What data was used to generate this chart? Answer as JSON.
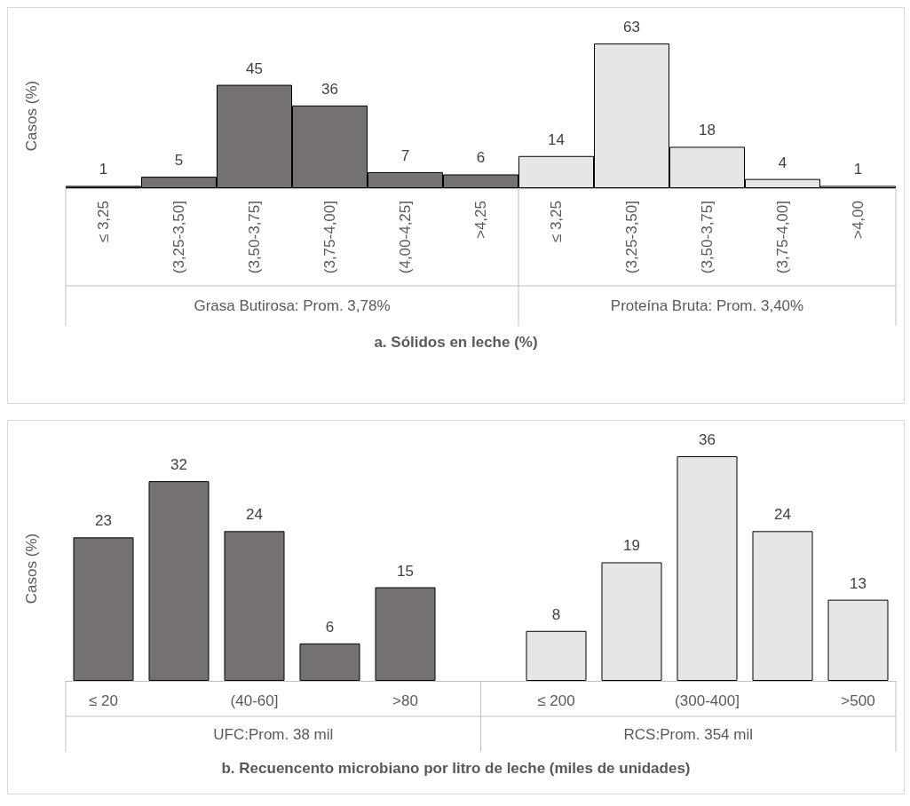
{
  "chart_data": [
    {
      "type": "bar",
      "ylabel": "Casos (%)",
      "xlabel": "a. Sólidos en leche (%)",
      "annotations": [
        "Grasa Butirosa: Prom. 3,78%",
        "Proteína Bruta: Prom. 3,40%"
      ],
      "categories": [
        "≤ 3,25",
        "(3,25-3,50]",
        "(3,50-3,75]",
        "(3,75-4,00]",
        "(4,00-4,25]",
        ">4,25",
        "≤ 3,25",
        "(3,25-3,50]",
        "(3,50-3,75]",
        "(3,75-4,00]",
        ">4,00"
      ],
      "stacked": true,
      "data_labels": true,
      "grid": false,
      "series": [
        {
          "color": "#767171",
          "values": [
            1,
            5,
            45,
            36,
            7,
            6,
            null,
            null,
            null,
            null,
            null
          ]
        },
        {
          "color": "#e7e6e6",
          "values": [
            null,
            null,
            null,
            null,
            null,
            null,
            14,
            63,
            18,
            4,
            1
          ]
        }
      ]
    },
    {
      "type": "bar",
      "ylabel": "Casos (%)",
      "xlabel": "b. Recuencento microbiano por litro de leche (miles de unidades)",
      "annotations": [
        "UFC:Prom. 38 mil",
        "RCS:Prom. 354 mil"
      ],
      "categories": [
        "≤ 20",
        null,
        "(40-60]",
        null,
        ">80",
        null,
        "≤ 200",
        null,
        "(300-400]",
        null,
        ">500"
      ],
      "stacked": true,
      "data_labels": true,
      "grid": false,
      "series": [
        {
          "color": "#767171",
          "values": [
            23,
            32,
            24,
            6,
            15,
            null,
            null,
            null,
            null,
            null,
            null
          ]
        },
        {
          "color": "#e7e6e6",
          "values": [
            null,
            null,
            null,
            null,
            null,
            null,
            8,
            19,
            36,
            24,
            13
          ]
        }
      ]
    }
  ]
}
